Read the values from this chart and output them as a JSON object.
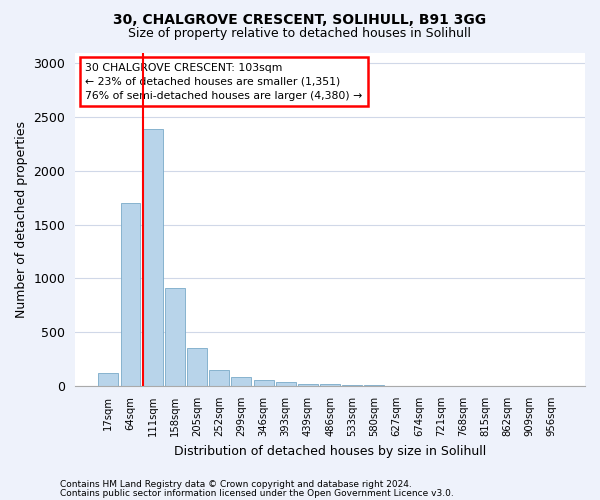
{
  "title1": "30, CHALGROVE CRESCENT, SOLIHULL, B91 3GG",
  "title2": "Size of property relative to detached houses in Solihull",
  "xlabel": "Distribution of detached houses by size in Solihull",
  "ylabel": "Number of detached properties",
  "categories": [
    "17sqm",
    "64sqm",
    "111sqm",
    "158sqm",
    "205sqm",
    "252sqm",
    "299sqm",
    "346sqm",
    "393sqm",
    "439sqm",
    "486sqm",
    "533sqm",
    "580sqm",
    "627sqm",
    "674sqm",
    "721sqm",
    "768sqm",
    "815sqm",
    "862sqm",
    "909sqm",
    "956sqm"
  ],
  "values": [
    120,
    1700,
    2390,
    910,
    355,
    150,
    85,
    60,
    40,
    20,
    15,
    10,
    10,
    0,
    0,
    0,
    0,
    0,
    0,
    0,
    0
  ],
  "bar_color": "#b8d4ea",
  "bar_edge_color": "#7aaac8",
  "vline_color": "red",
  "vline_pos": 1.575,
  "ylim": [
    0,
    3100
  ],
  "yticks": [
    0,
    500,
    1000,
    1500,
    2000,
    2500,
    3000
  ],
  "annotation_text": "30 CHALGROVE CRESCENT: 103sqm\n← 23% of detached houses are smaller (1,351)\n76% of semi-detached houses are larger (4,380) →",
  "annotation_box_color": "white",
  "annotation_box_edge_color": "red",
  "footer1": "Contains HM Land Registry data © Crown copyright and database right 2024.",
  "footer2": "Contains public sector information licensed under the Open Government Licence v3.0.",
  "bg_color": "#eef2fb",
  "plot_bg_color": "white",
  "grid_color": "#d0d8e8"
}
